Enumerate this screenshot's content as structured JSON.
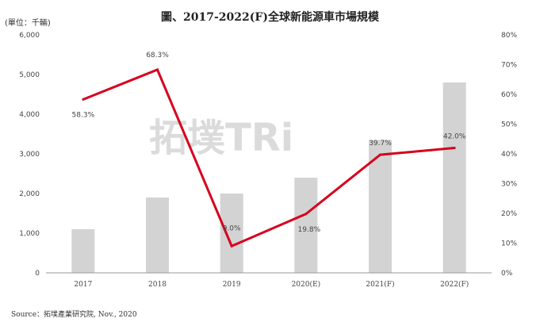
{
  "header": {
    "unit_label": "(單位：千輛)",
    "title": "圖、2017-2022(F)全球新能源車市場規模"
  },
  "footer": {
    "source": "Source：拓墣產業研究院, Nov., 2020"
  },
  "watermark": {
    "text": "拓墣TRi"
  },
  "colors": {
    "bars": "#d3d3d3",
    "line": "#d7001e",
    "axis": "#999999"
  },
  "chart_data": {
    "type": "bar",
    "categories": [
      "2017",
      "2018",
      "2019",
      "2020(E)",
      "2021(F)",
      "2022(F)"
    ],
    "series": [
      {
        "type": "bar",
        "axis": "left",
        "values": [
          1100,
          1900,
          2000,
          2400,
          3350,
          4800
        ]
      },
      {
        "type": "line",
        "axis": "right",
        "values": [
          58.3,
          68.3,
          9.0,
          19.8,
          39.7,
          42.0
        ],
        "labels": [
          "58.3%",
          "68.3%",
          "9.0%",
          "19.8%",
          "39.7%",
          "42.0%"
        ]
      }
    ],
    "y_left": {
      "ylim": [
        0,
        6000
      ],
      "ticks": [
        0,
        1000,
        2000,
        3000,
        4000,
        5000,
        6000
      ],
      "tick_labels": [
        "0",
        "1,000",
        "2,000",
        "3,000",
        "4,000",
        "5,000",
        "6,000"
      ]
    },
    "y_right": {
      "ylim": [
        0,
        80
      ],
      "ticks": [
        0,
        10,
        20,
        30,
        40,
        50,
        60,
        70,
        80
      ],
      "tick_labels": [
        "0%",
        "10%",
        "20%",
        "30%",
        "40%",
        "50%",
        "60%",
        "70%",
        "80%"
      ]
    },
    "grid": false,
    "legend": "none"
  }
}
